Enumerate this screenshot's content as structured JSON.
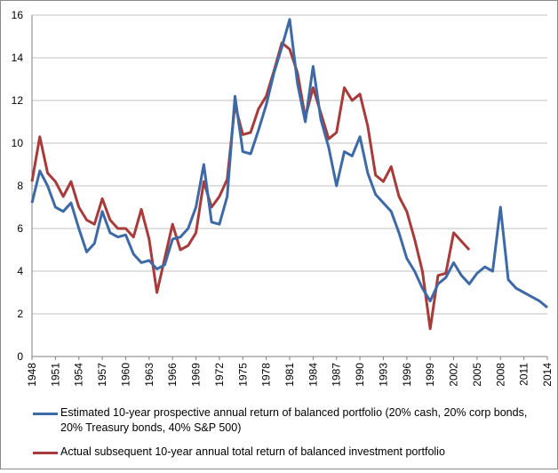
{
  "chart_data": {
    "type": "line",
    "title": "",
    "xlabel": "",
    "ylabel": "",
    "xlim": [
      1948,
      2014
    ],
    "ylim": [
      0,
      16
    ],
    "y_ticks": [
      0,
      2,
      4,
      6,
      8,
      10,
      12,
      14,
      16
    ],
    "x_tick_labels": [
      "1948",
      "1951",
      "1954",
      "1957",
      "1960",
      "1963",
      "1966",
      "1969",
      "1972",
      "1975",
      "1978",
      "1981",
      "1984",
      "1987",
      "1990",
      "1993",
      "1996",
      "1999",
      "2002",
      "2005",
      "2008",
      "2011",
      "2014"
    ],
    "grid": "horizontal",
    "legend": "bottom",
    "series": [
      {
        "name": "Estimated 10-year prospective annual return of balanced portfolio (20% cash, 20% corp bonds, 20% Treasury bonds, 40% S&P 500)",
        "color": "#3d6aa6",
        "x": [
          1948,
          1949,
          1950,
          1951,
          1952,
          1953,
          1954,
          1955,
          1956,
          1957,
          1958,
          1959,
          1960,
          1961,
          1962,
          1963,
          1964,
          1965,
          1966,
          1967,
          1968,
          1969,
          1970,
          1971,
          1972,
          1973,
          1974,
          1975,
          1976,
          1977,
          1978,
          1979,
          1980,
          1981,
          1982,
          1983,
          1984,
          1985,
          1986,
          1987,
          1988,
          1989,
          1990,
          1991,
          1992,
          1993,
          1994,
          1995,
          1996,
          1997,
          1998,
          1999,
          2000,
          2001,
          2002,
          2003,
          2004,
          2005,
          2006,
          2007,
          2008,
          2009,
          2010,
          2011,
          2012,
          2013,
          2014
        ],
        "values": [
          7.2,
          8.7,
          8.0,
          7.0,
          6.8,
          7.2,
          6.0,
          4.9,
          5.3,
          6.8,
          5.8,
          5.6,
          5.7,
          4.8,
          4.4,
          4.5,
          4.1,
          4.3,
          5.5,
          5.6,
          6.0,
          7.0,
          9.0,
          6.3,
          6.2,
          7.5,
          12.2,
          9.6,
          9.5,
          10.6,
          11.8,
          13.3,
          14.5,
          15.8,
          12.8,
          11.0,
          13.6,
          11.1,
          9.8,
          8.0,
          9.6,
          9.4,
          10.3,
          8.6,
          7.6,
          7.2,
          6.8,
          5.8,
          4.6,
          4.0,
          3.2,
          2.6,
          3.4,
          3.7,
          4.4,
          3.8,
          3.4,
          3.9,
          4.2,
          4.0,
          7.0,
          3.6,
          3.2,
          3.0,
          2.8,
          2.6,
          2.3
        ]
      },
      {
        "name": "Actual subsequent 10-year annual total return of balanced investment portfolio",
        "color": "#a83a3a",
        "x": [
          1948,
          1949,
          1950,
          1951,
          1952,
          1953,
          1954,
          1955,
          1956,
          1957,
          1958,
          1959,
          1960,
          1961,
          1962,
          1963,
          1964,
          1965,
          1966,
          1967,
          1968,
          1969,
          1970,
          1971,
          1972,
          1973,
          1974,
          1975,
          1976,
          1977,
          1978,
          1979,
          1980,
          1981,
          1982,
          1983,
          1984,
          1985,
          1986,
          1987,
          1988,
          1989,
          1990,
          1991,
          1992,
          1993,
          1994,
          1995,
          1996,
          1997,
          1998,
          1999,
          2000,
          2001,
          2002,
          2003,
          2004
        ],
        "values": [
          8.2,
          10.3,
          8.6,
          8.2,
          7.5,
          8.2,
          7.0,
          6.4,
          6.2,
          7.4,
          6.4,
          6.0,
          6.0,
          5.6,
          6.9,
          5.5,
          3.0,
          4.6,
          6.2,
          5.0,
          5.2,
          5.8,
          8.2,
          7.0,
          7.5,
          8.3,
          11.8,
          10.4,
          10.5,
          11.6,
          12.2,
          13.4,
          14.7,
          14.4,
          13.3,
          11.2,
          12.6,
          11.4,
          10.2,
          10.5,
          12.6,
          12.0,
          12.3,
          10.8,
          8.5,
          8.2,
          8.9,
          7.5,
          6.8,
          5.5,
          4.0,
          1.3,
          3.8,
          3.9,
          5.8,
          5.4,
          5.0
        ]
      }
    ]
  }
}
